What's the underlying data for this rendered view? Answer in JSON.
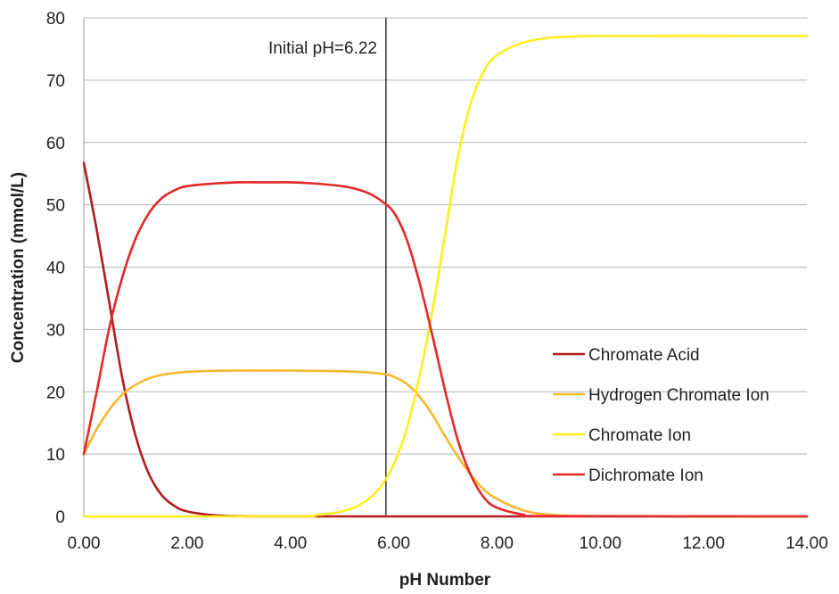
{
  "chart_data": {
    "type": "line",
    "title": "",
    "xlabel": "pH Number",
    "ylabel": "Concentration (mmol/L)",
    "xlim": [
      0,
      14
    ],
    "ylim": [
      0,
      80
    ],
    "x_ticks": [
      0,
      2,
      4,
      6,
      8,
      10,
      12,
      14
    ],
    "x_tick_labels": [
      "0.00",
      "2.00",
      "4.00",
      "6.00",
      "8.00",
      "10.00",
      "12.00",
      "14.00"
    ],
    "y_ticks": [
      0,
      10,
      20,
      30,
      40,
      50,
      60,
      70,
      80
    ],
    "y_tick_labels": [
      "0",
      "10",
      "20",
      "30",
      "40",
      "50",
      "60",
      "70",
      "80"
    ],
    "grid": "horizontal",
    "legend_position": "right",
    "annotation": {
      "text": "Initial pH=6.22",
      "x": 5.85
    },
    "series": [
      {
        "name": "Chromate Acid",
        "color": "#b01c1c",
        "x": [
          0,
          0.25,
          0.5,
          0.75,
          1.0,
          1.25,
          1.5,
          1.75,
          2.0,
          2.5,
          3.0,
          3.5,
          4.0,
          5.0,
          6.0,
          8.0,
          10.0,
          14.0
        ],
        "y": [
          56.7,
          46.0,
          34.0,
          22.0,
          13.0,
          7.0,
          3.5,
          1.7,
          0.8,
          0.2,
          0.05,
          0,
          0,
          0,
          0,
          0,
          0,
          0
        ]
      },
      {
        "name": "Hydrogen Chromate Ion",
        "color": "#f5b82e",
        "x": [
          0,
          0.25,
          0.5,
          0.75,
          1.0,
          1.25,
          1.5,
          1.75,
          2.0,
          2.5,
          3.0,
          3.5,
          4.0,
          4.5,
          5.0,
          5.5,
          5.85,
          6.0,
          6.25,
          6.5,
          6.75,
          7.0,
          7.25,
          7.5,
          7.75,
          8.0,
          8.5,
          9.0,
          10.0,
          14.0
        ],
        "y": [
          10.0,
          14.0,
          17.2,
          19.6,
          21.1,
          22.1,
          22.7,
          23.0,
          23.2,
          23.35,
          23.4,
          23.4,
          23.4,
          23.35,
          23.3,
          23.1,
          22.8,
          22.4,
          21.3,
          19.2,
          16.3,
          12.8,
          9.5,
          6.6,
          4.3,
          2.8,
          1.0,
          0.3,
          0.05,
          0
        ]
      },
      {
        "name": "Chromate Ion",
        "color": "#ffee1a",
        "x": [
          0,
          4.0,
          4.5,
          5.0,
          5.25,
          5.5,
          5.75,
          6.0,
          6.25,
          6.5,
          6.75,
          7.0,
          7.25,
          7.5,
          7.75,
          8.0,
          8.5,
          9.0,
          9.5,
          10.0,
          14.0
        ],
        "y": [
          0,
          0,
          0.2,
          0.8,
          1.5,
          2.7,
          4.8,
          8.3,
          14.0,
          22.5,
          33.0,
          45.5,
          58.0,
          66.5,
          71.5,
          74.0,
          76.0,
          76.8,
          77.0,
          77.1,
          77.1
        ]
      },
      {
        "name": "Dichromate Ion",
        "color": "#e3282a",
        "x": [
          0,
          0.25,
          0.5,
          0.75,
          1.0,
          1.25,
          1.5,
          1.75,
          2.0,
          2.5,
          3.0,
          3.5,
          4.0,
          4.5,
          5.0,
          5.25,
          5.5,
          5.75,
          6.0,
          6.25,
          6.5,
          6.75,
          7.0,
          7.25,
          7.5,
          7.75,
          8.0,
          8.5,
          9.0,
          14.0
        ],
        "y": [
          10.0,
          20.0,
          30.5,
          38.5,
          44.5,
          48.5,
          51.0,
          52.3,
          53.0,
          53.4,
          53.6,
          53.6,
          53.6,
          53.4,
          53.0,
          52.6,
          51.9,
          50.7,
          48.8,
          44.5,
          37.5,
          29.0,
          20.0,
          12.0,
          6.5,
          3.0,
          1.4,
          0.3,
          0.05,
          0
        ]
      }
    ]
  }
}
